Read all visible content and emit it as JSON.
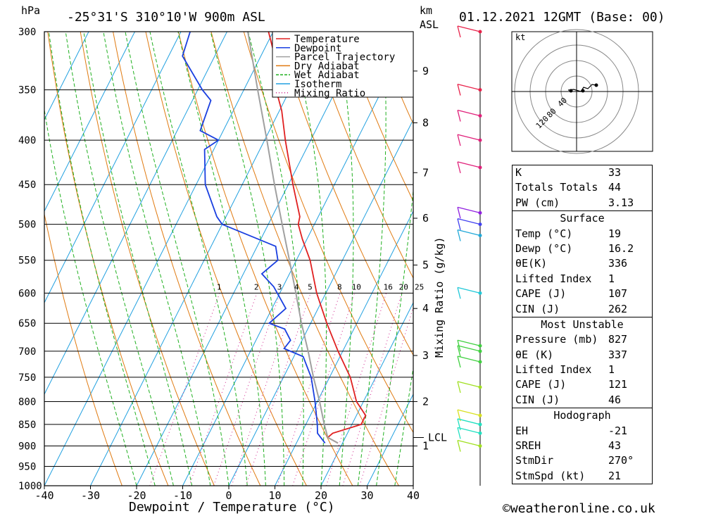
{
  "header": {
    "hpa_label": "hPa",
    "location": "-25°31'S  310°10'W  900m  ASL",
    "km_label": "km",
    "asl_label": "ASL",
    "datetime": "01.12.2021  12GMT  (Base: 00)"
  },
  "footer": {
    "xlabel": "Dewpoint / Temperature (°C)",
    "credit": "©weatheronline.co.uk",
    "mixing_ratio_axis": "Mixing Ratio (g/kg)"
  },
  "legend": [
    {
      "label": "Temperature",
      "color": "#e02020",
      "style": "solid"
    },
    {
      "label": "Dewpoint",
      "color": "#1a3fe0",
      "style": "solid"
    },
    {
      "label": "Parcel Trajectory",
      "color": "#a0a0a0",
      "style": "solid"
    },
    {
      "label": "Dry Adiabat",
      "color": "#e07a10",
      "style": "solid"
    },
    {
      "label": "Wet Adiabat",
      "color": "#20b020",
      "style": "dashed"
    },
    {
      "label": "Isotherm",
      "color": "#20a0e0",
      "style": "solid"
    },
    {
      "label": "Mixing Ratio",
      "color": "#d0208a",
      "style": "dotted"
    }
  ],
  "chart_data": {
    "type": "line",
    "title": "-25°31'S 310°10'W 900m ASL",
    "xlabel": "Dewpoint / Temperature (°C)",
    "ylabel": "hPa",
    "xlim": [
      -40,
      40
    ],
    "ylim": [
      1000,
      300
    ],
    "x_ticks": [
      "-40",
      "-30",
      "-20",
      "-10",
      "0",
      "10",
      "20",
      "30",
      "40"
    ],
    "pressure_levels": [
      "300",
      "350",
      "400",
      "450",
      "500",
      "550",
      "600",
      "650",
      "700",
      "750",
      "800",
      "850",
      "900",
      "950",
      "1000"
    ],
    "km_ticks": [
      {
        "km": "1",
        "p": 900
      },
      {
        "km": "2",
        "p": 800
      },
      {
        "km": "3",
        "p": 708
      },
      {
        "km": "4",
        "p": 625
      },
      {
        "km": "5",
        "p": 557
      },
      {
        "km": "6",
        "p": 492
      },
      {
        "km": "7",
        "p": 436
      },
      {
        "km": "8",
        "p": 382
      },
      {
        "km": "9",
        "p": 333
      }
    ],
    "lcl": {
      "label": "LCL",
      "p": 880
    },
    "mixing_ratio_labels": [
      "1",
      "2",
      "3",
      "4",
      "5",
      "8",
      "10",
      "16",
      "20",
      "25"
    ],
    "series": [
      {
        "name": "Temperature",
        "color": "#e02020",
        "points": [
          [
            893,
            19.0
          ],
          [
            880,
            16.2
          ],
          [
            870,
            16.8
          ],
          [
            850,
            22.0
          ],
          [
            830,
            22.0
          ],
          [
            800,
            18.5
          ],
          [
            750,
            14.5
          ],
          [
            700,
            9.0
          ],
          [
            650,
            3.5
          ],
          [
            600,
            -2.0
          ],
          [
            550,
            -7.0
          ],
          [
            520,
            -11.0
          ],
          [
            500,
            -13.5
          ],
          [
            490,
            -14.0
          ],
          [
            450,
            -19.0
          ],
          [
            400,
            -25.5
          ],
          [
            370,
            -29.5
          ],
          [
            350,
            -33.0
          ],
          [
            320,
            -37.0
          ],
          [
            300,
            -41.0
          ]
        ]
      },
      {
        "name": "Dewpoint",
        "color": "#1a3fe0",
        "points": [
          [
            893,
            16.2
          ],
          [
            870,
            13.5
          ],
          [
            850,
            12.5
          ],
          [
            800,
            9.5
          ],
          [
            750,
            6.0
          ],
          [
            710,
            2.0
          ],
          [
            695,
            -3.0
          ],
          [
            680,
            -2.5
          ],
          [
            660,
            -5.0
          ],
          [
            650,
            -9.0
          ],
          [
            625,
            -7.0
          ],
          [
            590,
            -12.0
          ],
          [
            570,
            -16.0
          ],
          [
            550,
            -14.0
          ],
          [
            530,
            -16.0
          ],
          [
            500,
            -30.0
          ],
          [
            490,
            -32.0
          ],
          [
            450,
            -38.0
          ],
          [
            410,
            -42.0
          ],
          [
            400,
            -40.0
          ],
          [
            390,
            -45.0
          ],
          [
            360,
            -46.0
          ],
          [
            350,
            -49.0
          ],
          [
            320,
            -57.0
          ],
          [
            300,
            -58.0
          ]
        ]
      },
      {
        "name": "Parcel Trajectory",
        "color": "#a0a0a0",
        "points": [
          [
            893,
            19.0
          ],
          [
            880,
            16.2
          ],
          [
            850,
            14.0
          ],
          [
            800,
            10.5
          ],
          [
            750,
            6.5
          ],
          [
            700,
            2.5
          ],
          [
            650,
            -2.0
          ],
          [
            600,
            -6.5
          ],
          [
            550,
            -11.5
          ],
          [
            500,
            -17.0
          ],
          [
            450,
            -23.0
          ],
          [
            400,
            -29.5
          ],
          [
            350,
            -37.0
          ],
          [
            300,
            -45.5
          ]
        ]
      }
    ],
    "wind_barbs": [
      {
        "p": 300,
        "color": "#e8224a"
      },
      {
        "p": 350,
        "color": "#e8224a"
      },
      {
        "p": 375,
        "color": "#e0207a"
      },
      {
        "p": 400,
        "color": "#e0207a"
      },
      {
        "p": 430,
        "color": "#e0207a"
      },
      {
        "p": 485,
        "color": "#9020e0"
      },
      {
        "p": 500,
        "color": "#4040f0"
      },
      {
        "p": 515,
        "color": "#20a8d8"
      },
      {
        "p": 600,
        "color": "#20c8d8"
      },
      {
        "p": 690,
        "color": "#40d040"
      },
      {
        "p": 700,
        "color": "#40d040"
      },
      {
        "p": 720,
        "color": "#40d040"
      },
      {
        "p": 770,
        "color": "#a0e020"
      },
      {
        "p": 830,
        "color": "#d8e020"
      },
      {
        "p": 850,
        "color": "#20e0c0"
      },
      {
        "p": 870,
        "color": "#20e0c0"
      },
      {
        "p": 900,
        "color": "#a0e020"
      }
    ],
    "hodograph": {
      "unit": "kt",
      "ring_labels": [
        "40",
        "80",
        "120"
      ]
    }
  },
  "indices": [
    {
      "label": "K",
      "value": "33"
    },
    {
      "label": "Totals Totals",
      "value": "44"
    },
    {
      "label": "PW (cm)",
      "value": "3.13"
    }
  ],
  "surface": {
    "title": "Surface",
    "rows": [
      {
        "label": "Temp (°C)",
        "value": "19"
      },
      {
        "label": "Dewp (°C)",
        "value": "16.2"
      },
      {
        "label": "θE(K)",
        "value": "336"
      },
      {
        "label": "Lifted Index",
        "value": "1"
      },
      {
        "label": "CAPE (J)",
        "value": "107"
      },
      {
        "label": "CIN (J)",
        "value": "262"
      }
    ]
  },
  "most_unstable": {
    "title": "Most Unstable",
    "rows": [
      {
        "label": "Pressure (mb)",
        "value": "827"
      },
      {
        "label": "θE (K)",
        "value": "337"
      },
      {
        "label": "Lifted Index",
        "value": "1"
      },
      {
        "label": "CAPE (J)",
        "value": "121"
      },
      {
        "label": "CIN (J)",
        "value": "46"
      }
    ]
  },
  "hodograph_table": {
    "title": "Hodograph",
    "rows": [
      {
        "label": "EH",
        "value": "-21"
      },
      {
        "label": "SREH",
        "value": "43"
      },
      {
        "label": "StmDir",
        "value": "270°"
      },
      {
        "label": "StmSpd (kt)",
        "value": "21"
      }
    ]
  }
}
